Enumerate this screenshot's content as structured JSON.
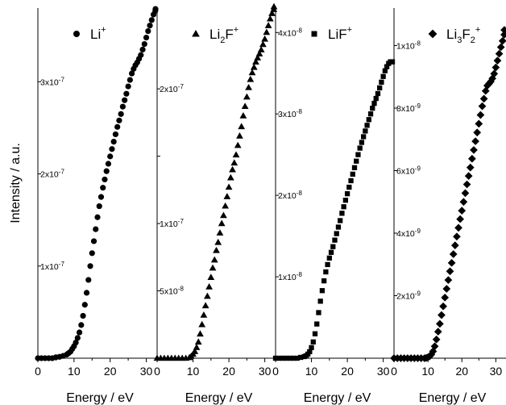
{
  "chart_data": {
    "type": "scatter",
    "ylabel": "Intensity / a.u.",
    "panels": [
      {
        "xlabel": "Energy / eV",
        "xlim": [
          0,
          33
        ],
        "xticks": [
          {
            "v": 0,
            "label": "0"
          },
          {
            "v": 10,
            "label": "10"
          },
          {
            "v": 20,
            "label": "20"
          },
          {
            "v": 30,
            "label": "30"
          }
        ],
        "ylim": [
          0,
          3.8e-07
        ],
        "yticks": [
          {
            "v": 1e-07,
            "label": "1x10",
            "exp": "-7"
          },
          {
            "v": 2e-07,
            "label": "2x10",
            "exp": "-7"
          },
          {
            "v": 3e-07,
            "label": "3x10",
            "exp": "-7"
          }
        ],
        "series": [
          {
            "name": "Li",
            "name_sub": "",
            "name_sup": "+",
            "marker": "circle",
            "x": [
              0.0,
              1.0,
              2.0,
              3.0,
              4.0,
              5.0,
              6.0,
              7.0,
              8.0,
              8.5,
              9.0,
              9.5,
              10.0,
              10.5,
              11.0,
              11.5,
              12.0,
              12.5,
              13.0,
              13.5,
              14.0,
              14.5,
              15.0,
              15.5,
              16.0,
              16.5,
              17.0,
              17.5,
              18.0,
              18.5,
              19.0,
              19.5,
              20.0,
              20.5,
              21.0,
              21.5,
              22.0,
              22.5,
              23.0,
              23.5,
              24.0,
              24.5,
              25.0,
              25.5,
              26.0,
              26.5,
              27.0,
              27.5,
              28.0,
              28.5,
              29.0,
              29.5,
              30.0,
              30.5,
              31.0,
              31.5,
              32.0,
              32.5,
              33.0
            ],
            "y": [
              0.0,
              0.0,
              0.0,
              0.0,
              0.0,
              1e-09,
              1.5e-09,
              2.5e-09,
              4e-09,
              5.5e-09,
              7e-09,
              1e-08,
              1.3e-08,
              1.7e-08,
              2.2e-08,
              2.8e-08,
              3.6e-08,
              4.6e-08,
              5.8e-08,
              7.1e-08,
              8.5e-08,
              1e-07,
              1.14e-07,
              1.27e-07,
              1.4e-07,
              1.53e-07,
              1.65e-07,
              1.75e-07,
              1.85e-07,
              1.94e-07,
              2.03e-07,
              2.11e-07,
              2.19e-07,
              2.27e-07,
              2.35e-07,
              2.43e-07,
              2.51e-07,
              2.58e-07,
              2.65e-07,
              2.73e-07,
              2.8e-07,
              2.87e-07,
              2.95e-07,
              3.02e-07,
              3.09e-07,
              3.14e-07,
              3.18e-07,
              3.21e-07,
              3.25e-07,
              3.29e-07,
              3.35e-07,
              3.41e-07,
              3.48e-07,
              3.55e-07,
              3.61e-07,
              3.67e-07,
              3.73e-07,
              3.77e-07,
              3.79e-07
            ]
          }
        ]
      },
      {
        "xlabel": "Energy / eV",
        "xlim": [
          0,
          33
        ],
        "xticks": [
          {
            "v": 0,
            "label": "0"
          },
          {
            "v": 10,
            "label": "10"
          },
          {
            "v": 20,
            "label": "20"
          },
          {
            "v": 30,
            "label": "30"
          }
        ],
        "ylim": [
          0,
          2.6e-07
        ],
        "yticks": [
          {
            "v": 5e-08,
            "label": "5x10",
            "exp": "-8"
          },
          {
            "v": 1e-07,
            "label": "1x10",
            "exp": "-7"
          },
          {
            "v": 1.5e-07,
            "label": "",
            "exp": ""
          },
          {
            "v": 2e-07,
            "label": "2x10",
            "exp": "-7"
          }
        ],
        "series": [
          {
            "name": "Li",
            "name_sub": "2",
            "name_sup": "+",
            "name_post": "F",
            "marker": "triangle",
            "x": [
              0.0,
              1.0,
              2.0,
              3.0,
              4.0,
              5.0,
              6.0,
              7.0,
              8.0,
              9.0,
              9.5,
              10.0,
              10.5,
              11.0,
              11.5,
              12.0,
              12.5,
              13.0,
              13.5,
              14.0,
              14.5,
              15.0,
              15.5,
              16.0,
              16.5,
              17.0,
              17.5,
              18.0,
              18.5,
              19.0,
              19.5,
              20.0,
              20.5,
              21.0,
              21.5,
              22.0,
              22.5,
              23.0,
              23.5,
              24.0,
              24.5,
              25.0,
              25.5,
              26.0,
              26.5,
              27.0,
              27.5,
              28.0,
              28.5,
              29.0,
              29.5,
              30.0,
              30.5,
              31.0,
              31.5,
              32.0,
              32.5,
              33.0
            ],
            "y": [
              0.0,
              0.0,
              0.0,
              0.0,
              0.0,
              0.0,
              0.0,
              0.0,
              0.0,
              5e-10,
              1.5e-09,
              3e-09,
              5e-09,
              8e-09,
              1.2e-08,
              1.8e-08,
              2.5e-08,
              3.2e-08,
              3.9e-08,
              4.6e-08,
              5.3e-08,
              6e-08,
              6.7e-08,
              7.3e-08,
              8e-08,
              8.6e-08,
              9.3e-08,
              1e-07,
              1.06e-07,
              1.13e-07,
              1.2e-07,
              1.27e-07,
              1.34e-07,
              1.4e-07,
              1.45e-07,
              1.51e-07,
              1.58e-07,
              1.65e-07,
              1.72e-07,
              1.8e-07,
              1.87e-07,
              1.94e-07,
              2.01e-07,
              2.07e-07,
              2.12e-07,
              2.16e-07,
              2.2e-07,
              2.23e-07,
              2.26e-07,
              2.29e-07,
              2.33e-07,
              2.37e-07,
              2.42e-07,
              2.47e-07,
              2.52e-07,
              2.56e-07,
              2.59e-07,
              2.61e-07
            ]
          }
        ]
      },
      {
        "xlabel": "Energy / eV",
        "xlim": [
          0,
          33
        ],
        "xticks": [
          {
            "v": 0,
            "label": "0"
          },
          {
            "v": 10,
            "label": "10"
          },
          {
            "v": 20,
            "label": "20"
          },
          {
            "v": 30,
            "label": "30"
          }
        ],
        "ylim": [
          0,
          4.3e-08
        ],
        "yticks": [
          {
            "v": 1e-08,
            "label": "1x10",
            "exp": "-8"
          },
          {
            "v": 2e-08,
            "label": "2x10",
            "exp": "-8"
          },
          {
            "v": 3e-08,
            "label": "3x10",
            "exp": "-8"
          },
          {
            "v": 4e-08,
            "label": "4x10",
            "exp": "-8"
          }
        ],
        "series": [
          {
            "name": "LiF",
            "name_sub": "",
            "name_sup": "+",
            "marker": "square",
            "x": [
              0.0,
              1.0,
              2.0,
              3.0,
              4.0,
              5.0,
              6.0,
              7.0,
              8.0,
              8.5,
              9.0,
              9.5,
              10.0,
              10.5,
              11.0,
              11.5,
              12.0,
              12.5,
              13.0,
              13.5,
              14.0,
              14.5,
              15.0,
              15.5,
              16.0,
              16.5,
              17.0,
              17.5,
              18.0,
              18.5,
              19.0,
              19.5,
              20.0,
              20.5,
              21.0,
              21.5,
              22.0,
              22.5,
              23.0,
              23.5,
              24.0,
              24.5,
              25.0,
              25.5,
              26.0,
              26.5,
              27.0,
              27.5,
              28.0,
              28.5,
              29.0,
              29.5,
              30.0,
              30.5,
              31.0,
              31.5,
              32.0,
              32.5,
              33.0
            ],
            "y": [
              0.0,
              0.0,
              0.0,
              0.0,
              0.0,
              0.0,
              0.0,
              1e-10,
              2e-10,
              3e-10,
              5e-10,
              8e-10,
              1.3e-09,
              2e-09,
              3e-09,
              4.2e-09,
              5.6e-09,
              7e-09,
              8.3e-09,
              9.5e-09,
              1.06e-08,
              1.15e-08,
              1.23e-08,
              1.3e-08,
              1.37e-08,
              1.45e-08,
              1.53e-08,
              1.61e-08,
              1.69e-08,
              1.78e-08,
              1.86e-08,
              1.94e-08,
              2.02e-08,
              2.1e-08,
              2.18e-08,
              2.26e-08,
              2.34e-08,
              2.42e-08,
              2.5e-08,
              2.58e-08,
              2.65e-08,
              2.72e-08,
              2.79e-08,
              2.86e-08,
              2.93e-08,
              3e-08,
              3.07e-08,
              3.13e-08,
              3.19e-08,
              3.25e-08,
              3.32e-08,
              3.39e-08,
              3.46e-08,
              3.53e-08,
              3.58e-08,
              3.62e-08,
              3.64e-08,
              3.64e-08,
              3.64e-08
            ]
          }
        ]
      },
      {
        "xlabel": "Energy / eV",
        "xlim": [
          0,
          33
        ],
        "xticks": [
          {
            "v": 0,
            "label": "0"
          },
          {
            "v": 10,
            "label": "10"
          },
          {
            "v": 20,
            "label": "20"
          },
          {
            "v": 30,
            "label": "30"
          }
        ],
        "ylim": [
          0,
          1.12e-08
        ],
        "yticks": [
          {
            "v": 2e-09,
            "label": "2x10",
            "exp": "-9"
          },
          {
            "v": 4e-09,
            "label": "4x10",
            "exp": "-9"
          },
          {
            "v": 6e-09,
            "label": "6x10",
            "exp": "-9"
          },
          {
            "v": 8e-09,
            "label": "8x10",
            "exp": "-9"
          },
          {
            "v": 1e-08,
            "label": "1x10",
            "exp": "-8"
          }
        ],
        "series": [
          {
            "name": "Li",
            "name_sub": "3",
            "name_post": "F",
            "name_sub2": "2",
            "name_sup": "+",
            "marker": "diamond",
            "x": [
              0.0,
              1.0,
              2.0,
              3.0,
              4.0,
              5.0,
              6.0,
              7.0,
              8.0,
              9.0,
              9.5,
              10.0,
              10.5,
              11.0,
              11.5,
              12.0,
              12.5,
              13.0,
              13.5,
              14.0,
              14.5,
              15.0,
              15.5,
              16.0,
              16.5,
              17.0,
              17.5,
              18.0,
              18.5,
              19.0,
              19.5,
              20.0,
              20.5,
              21.0,
              21.5,
              22.0,
              22.5,
              23.0,
              23.5,
              24.0,
              24.5,
              25.0,
              25.5,
              26.0,
              26.5,
              27.0,
              27.5,
              28.0,
              28.5,
              29.0,
              29.5,
              30.0,
              30.5,
              31.0,
              31.5,
              32.0,
              32.5,
              33.0
            ],
            "y": [
              0.0,
              0.0,
              0.0,
              0.0,
              0.0,
              0.0,
              0.0,
              0.0,
              0.0,
              0.0,
              1e-11,
              3e-11,
              6e-11,
              1.2e-10,
              2.2e-10,
              3.8e-10,
              6e-10,
              8.5e-10,
              1.1e-09,
              1.38e-09,
              1.66e-09,
              1.94e-09,
              2.22e-09,
              2.5e-09,
              2.78e-09,
              3.05e-09,
              3.33e-09,
              3.61e-09,
              3.89e-09,
              4.17e-09,
              4.45e-09,
              4.72e-09,
              5e-09,
              5.28e-09,
              5.56e-09,
              5.83e-09,
              6.1e-09,
              6.38e-09,
              6.66e-09,
              6.94e-09,
              7.22e-09,
              7.5e-09,
              7.78e-09,
              8.06e-09,
              8.3e-09,
              8.55e-09,
              8.72e-09,
              8.78e-09,
              8.85e-09,
              8.95e-09,
              9.1e-09,
              9.3e-09,
              9.52e-09,
              9.74e-09,
              9.95e-09,
              1.015e-08,
              1.035e-08,
              1.05e-08
            ]
          }
        ]
      }
    ]
  }
}
